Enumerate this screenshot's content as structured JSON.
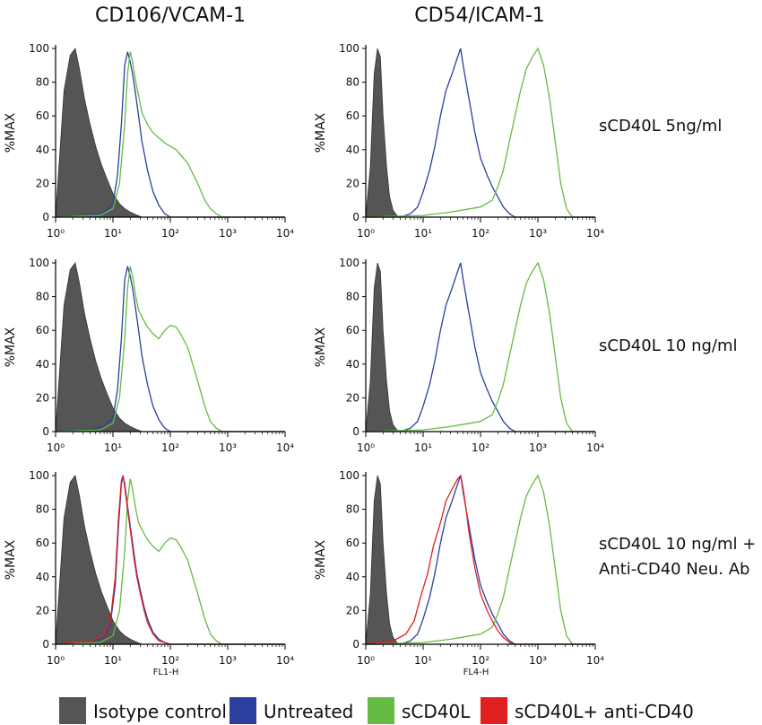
{
  "column_titles": [
    "CD106/VCAM-1",
    "CD54/ICAM-1"
  ],
  "row_labels": [
    [
      "sCD40L 5ng/ml"
    ],
    [
      "sCD40L 10 ng/ml"
    ],
    [
      "sCD40L 10 ng/ml +",
      "Anti-CD40 Neu. Ab"
    ]
  ],
  "colors": {
    "isotype": "#555555",
    "untreated": "#2a3f9e",
    "sCD40L": "#66bb44",
    "anti": "#e0201e"
  },
  "legend": [
    {
      "label": "Isotype control",
      "color_key": "isotype"
    },
    {
      "label": "Untreated",
      "color_key": "untreated"
    },
    {
      "label": "sCD40L",
      "color_key": "sCD40L"
    },
    {
      "label": "sCD40L+ anti-CD40",
      "color_key": "anti"
    }
  ],
  "chart_data": [
    {
      "type": "area",
      "row": 0,
      "col": 0,
      "ylabel": "%MAX",
      "xlabel": "",
      "xscale": "log",
      "xlim": [
        1,
        10000
      ],
      "ylim": [
        0,
        100
      ],
      "yticks": [
        0,
        20,
        40,
        60,
        80,
        100
      ],
      "xticks": [
        "10⁰",
        "10¹",
        "10²",
        "10³",
        "10⁴"
      ],
      "series": [
        {
          "key": "isotype",
          "fill": true,
          "x": [
            1,
            1.4,
            1.8,
            2.2,
            2.6,
            3.2,
            4,
            5,
            6.3,
            8,
            10,
            13,
            16,
            20,
            25,
            32
          ],
          "y": [
            0,
            75,
            96,
            100,
            88,
            70,
            55,
            42,
            31,
            22,
            14,
            8,
            5,
            3,
            1.5,
            0
          ]
        },
        {
          "key": "untreated",
          "fill": false,
          "x": [
            1,
            4,
            7,
            10,
            12,
            14,
            16,
            18,
            20,
            22,
            25,
            28,
            32,
            40,
            50,
            63,
            80,
            100,
            10000
          ],
          "y": [
            0,
            1,
            3,
            8,
            25,
            55,
            90,
            98,
            92,
            85,
            72,
            60,
            45,
            28,
            15,
            7,
            2,
            0,
            0
          ]
        },
        {
          "key": "sCD40L",
          "fill": false,
          "x": [
            1,
            6,
            10,
            13,
            16,
            18,
            20,
            22,
            25,
            28,
            32,
            40,
            50,
            63,
            80,
            100,
            126,
            150,
            200,
            300,
            400,
            500,
            631,
            800,
            10000
          ],
          "y": [
            0,
            1,
            5,
            20,
            55,
            85,
            98,
            92,
            80,
            72,
            62,
            55,
            50,
            47,
            44,
            42,
            40,
            37,
            32,
            20,
            10,
            5,
            2,
            0,
            0
          ]
        }
      ]
    },
    {
      "type": "area",
      "row": 0,
      "col": 1,
      "ylabel": "%MAX",
      "xlabel": "",
      "xscale": "log",
      "xlim": [
        1,
        10000
      ],
      "ylim": [
        0,
        100
      ],
      "yticks": [
        0,
        20,
        40,
        60,
        80,
        100
      ],
      "xticks": [
        "10⁰",
        "10¹",
        "10²",
        "10³",
        "10⁴"
      ],
      "series": [
        {
          "key": "isotype",
          "fill": true,
          "x": [
            1,
            1.2,
            1.4,
            1.6,
            1.8,
            2.0,
            2.3,
            2.6,
            3.0,
            3.5,
            4
          ],
          "y": [
            0,
            30,
            85,
            100,
            95,
            60,
            30,
            12,
            4,
            1,
            0
          ]
        },
        {
          "key": "untreated",
          "fill": false,
          "x": [
            1,
            4,
            6,
            8,
            10,
            13,
            16,
            20,
            25,
            32,
            40,
            45,
            50,
            56,
            63,
            80,
            100,
            130,
            160,
            200,
            250,
            320,
            400,
            10000
          ],
          "y": [
            0,
            0,
            2,
            6,
            15,
            28,
            42,
            60,
            75,
            85,
            95,
            100,
            90,
            80,
            70,
            50,
            35,
            25,
            18,
            12,
            6,
            2,
            0,
            0
          ]
        },
        {
          "key": "sCD40L",
          "fill": false,
          "x": [
            1,
            10,
            30,
            100,
            160,
            200,
            250,
            320,
            400,
            500,
            631,
            800,
            1000,
            1260,
            1600,
            2000,
            2500,
            3160,
            4000,
            10000
          ],
          "y": [
            0,
            1,
            3,
            6,
            10,
            18,
            28,
            45,
            60,
            75,
            88,
            95,
            100,
            90,
            70,
            45,
            20,
            5,
            0,
            0
          ]
        }
      ]
    },
    {
      "type": "area",
      "row": 1,
      "col": 0,
      "ylabel": "%MAX",
      "xlabel": "",
      "xscale": "log",
      "xlim": [
        1,
        10000
      ],
      "ylim": [
        0,
        100
      ],
      "yticks": [
        0,
        20,
        40,
        60,
        80,
        100
      ],
      "xticks": [
        "10⁰",
        "10¹",
        "10²",
        "10³",
        "10⁴"
      ],
      "series": [
        {
          "key": "isotype",
          "fill": true,
          "x": [
            1,
            1.4,
            1.8,
            2.2,
            2.6,
            3.2,
            4,
            5,
            6.3,
            8,
            10,
            13,
            16,
            20,
            25,
            32
          ],
          "y": [
            0,
            75,
            96,
            100,
            88,
            70,
            55,
            42,
            31,
            22,
            14,
            8,
            5,
            3,
            1.5,
            0
          ]
        },
        {
          "key": "untreated",
          "fill": false,
          "x": [
            1,
            4,
            7,
            10,
            12,
            14,
            16,
            18,
            20,
            22,
            25,
            28,
            32,
            40,
            50,
            63,
            80,
            100,
            10000
          ],
          "y": [
            0,
            1,
            3,
            8,
            25,
            55,
            90,
            98,
            92,
            85,
            72,
            60,
            45,
            28,
            15,
            7,
            2,
            0,
            0
          ]
        },
        {
          "key": "sCD40L",
          "fill": false,
          "x": [
            1,
            6,
            10,
            13,
            16,
            18,
            20,
            22,
            25,
            28,
            32,
            40,
            50,
            63,
            80,
            100,
            126,
            150,
            200,
            300,
            400,
            500,
            631,
            800,
            10000
          ],
          "y": [
            0,
            1,
            5,
            20,
            55,
            85,
            98,
            92,
            80,
            72,
            68,
            62,
            58,
            55,
            60,
            63,
            62,
            58,
            50,
            30,
            15,
            6,
            2,
            0,
            0
          ]
        }
      ]
    },
    {
      "type": "area",
      "row": 1,
      "col": 1,
      "ylabel": "%MAX",
      "xlabel": "",
      "xscale": "log",
      "xlim": [
        1,
        10000
      ],
      "ylim": [
        0,
        100
      ],
      "yticks": [
        0,
        20,
        40,
        60,
        80,
        100
      ],
      "xticks": [
        "10⁰",
        "10¹",
        "10²",
        "10³",
        "10⁴"
      ],
      "series": [
        {
          "key": "isotype",
          "fill": true,
          "x": [
            1,
            1.2,
            1.4,
            1.6,
            1.8,
            2.0,
            2.3,
            2.6,
            3.0,
            3.5,
            4
          ],
          "y": [
            0,
            30,
            85,
            100,
            95,
            60,
            30,
            12,
            4,
            1,
            0
          ]
        },
        {
          "key": "untreated",
          "fill": false,
          "x": [
            1,
            4,
            6,
            8,
            10,
            13,
            16,
            20,
            25,
            32,
            40,
            45,
            50,
            56,
            63,
            80,
            100,
            130,
            160,
            200,
            250,
            320,
            400,
            10000
          ],
          "y": [
            0,
            0,
            2,
            6,
            15,
            28,
            42,
            60,
            75,
            85,
            95,
            100,
            90,
            80,
            70,
            50,
            35,
            25,
            18,
            12,
            6,
            2,
            0,
            0
          ]
        },
        {
          "key": "sCD40L",
          "fill": false,
          "x": [
            1,
            10,
            30,
            100,
            160,
            200,
            250,
            320,
            400,
            500,
            631,
            800,
            1000,
            1260,
            1600,
            2000,
            2500,
            3160,
            4000,
            10000
          ],
          "y": [
            0,
            1,
            3,
            6,
            10,
            18,
            28,
            45,
            60,
            75,
            88,
            95,
            100,
            90,
            70,
            45,
            20,
            5,
            0,
            0
          ]
        }
      ]
    },
    {
      "type": "area",
      "row": 2,
      "col": 0,
      "ylabel": "%MAX",
      "xlabel": "FL1-H",
      "xscale": "log",
      "xlim": [
        1,
        10000
      ],
      "ylim": [
        0,
        100
      ],
      "yticks": [
        0,
        20,
        40,
        60,
        80,
        100
      ],
      "xticks": [
        "10⁰",
        "10¹",
        "10²",
        "10³",
        "10⁴"
      ],
      "series": [
        {
          "key": "isotype",
          "fill": true,
          "x": [
            1,
            1.4,
            1.8,
            2.2,
            2.6,
            3.2,
            4,
            5,
            6.3,
            8,
            10,
            13,
            16,
            20,
            25,
            32
          ],
          "y": [
            0,
            75,
            96,
            100,
            88,
            70,
            55,
            42,
            31,
            22,
            14,
            8,
            5,
            3,
            1.5,
            0
          ]
        },
        {
          "key": "untreated",
          "fill": false,
          "x": [
            1,
            4,
            7,
            9,
            11,
            12.5,
            14,
            15,
            16,
            18,
            20,
            23,
            26,
            30,
            35,
            40,
            50,
            63,
            80,
            100,
            10000
          ],
          "y": [
            0,
            1,
            4,
            12,
            35,
            70,
            95,
            100,
            95,
            82,
            70,
            55,
            42,
            32,
            22,
            15,
            7,
            3,
            1,
            0,
            0
          ]
        },
        {
          "key": "sCD40L",
          "fill": false,
          "x": [
            1,
            6,
            10,
            13,
            16,
            18,
            20,
            22,
            25,
            28,
            32,
            40,
            50,
            63,
            80,
            100,
            126,
            150,
            200,
            300,
            400,
            500,
            631,
            800,
            10000
          ],
          "y": [
            0,
            1,
            5,
            20,
            55,
            85,
            98,
            92,
            80,
            72,
            68,
            62,
            58,
            55,
            60,
            63,
            62,
            58,
            50,
            30,
            15,
            6,
            2,
            0,
            0
          ]
        },
        {
          "key": "anti",
          "fill": false,
          "x": [
            1,
            4,
            7,
            9,
            11,
            12.5,
            14,
            15,
            16,
            18,
            20,
            23,
            26,
            30,
            35,
            40,
            50,
            63,
            80,
            100,
            10000
          ],
          "y": [
            0,
            2,
            5,
            14,
            40,
            75,
            97,
            100,
            93,
            80,
            68,
            52,
            40,
            30,
            20,
            13,
            6,
            2,
            1,
            0,
            0
          ]
        }
      ]
    },
    {
      "type": "area",
      "row": 2,
      "col": 1,
      "ylabel": "%MAX",
      "xlabel": "FL4-H",
      "xscale": "log",
      "xlim": [
        1,
        10000
      ],
      "ylim": [
        0,
        100
      ],
      "yticks": [
        0,
        20,
        40,
        60,
        80,
        100
      ],
      "xticks": [
        "10⁰",
        "10¹",
        "10²",
        "10³",
        "10⁴"
      ],
      "series": [
        {
          "key": "isotype",
          "fill": true,
          "x": [
            1,
            1.2,
            1.4,
            1.6,
            1.8,
            2.0,
            2.3,
            2.6,
            3.0,
            3.5,
            4
          ],
          "y": [
            0,
            30,
            85,
            100,
            95,
            60,
            30,
            12,
            4,
            1,
            0
          ]
        },
        {
          "key": "untreated",
          "fill": false,
          "x": [
            1,
            4,
            6,
            8,
            10,
            13,
            16,
            20,
            25,
            32,
            40,
            45,
            50,
            56,
            63,
            80,
            100,
            130,
            160,
            200,
            250,
            320,
            400,
            10000
          ],
          "y": [
            0,
            0,
            2,
            6,
            15,
            28,
            42,
            60,
            75,
            85,
            95,
            100,
            90,
            80,
            70,
            50,
            35,
            25,
            18,
            12,
            6,
            2,
            0,
            0
          ]
        },
        {
          "key": "sCD40L",
          "fill": false,
          "x": [
            1,
            10,
            30,
            100,
            160,
            200,
            250,
            320,
            400,
            500,
            631,
            800,
            1000,
            1260,
            1600,
            2000,
            2500,
            3160,
            4000,
            10000
          ],
          "y": [
            0,
            1,
            3,
            6,
            10,
            18,
            28,
            45,
            60,
            75,
            88,
            95,
            100,
            90,
            70,
            45,
            20,
            5,
            0,
            0
          ]
        },
        {
          "key": "anti",
          "fill": false,
          "x": [
            1,
            3,
            5,
            7,
            9,
            12,
            15,
            20,
            25,
            32,
            40,
            45,
            50,
            56,
            63,
            80,
            100,
            130,
            160,
            200,
            250,
            320,
            400,
            10000
          ],
          "y": [
            0,
            2,
            6,
            14,
            28,
            42,
            58,
            72,
            85,
            92,
            98,
            100,
            92,
            80,
            66,
            45,
            30,
            20,
            14,
            8,
            4,
            1,
            0,
            0
          ]
        }
      ]
    }
  ]
}
